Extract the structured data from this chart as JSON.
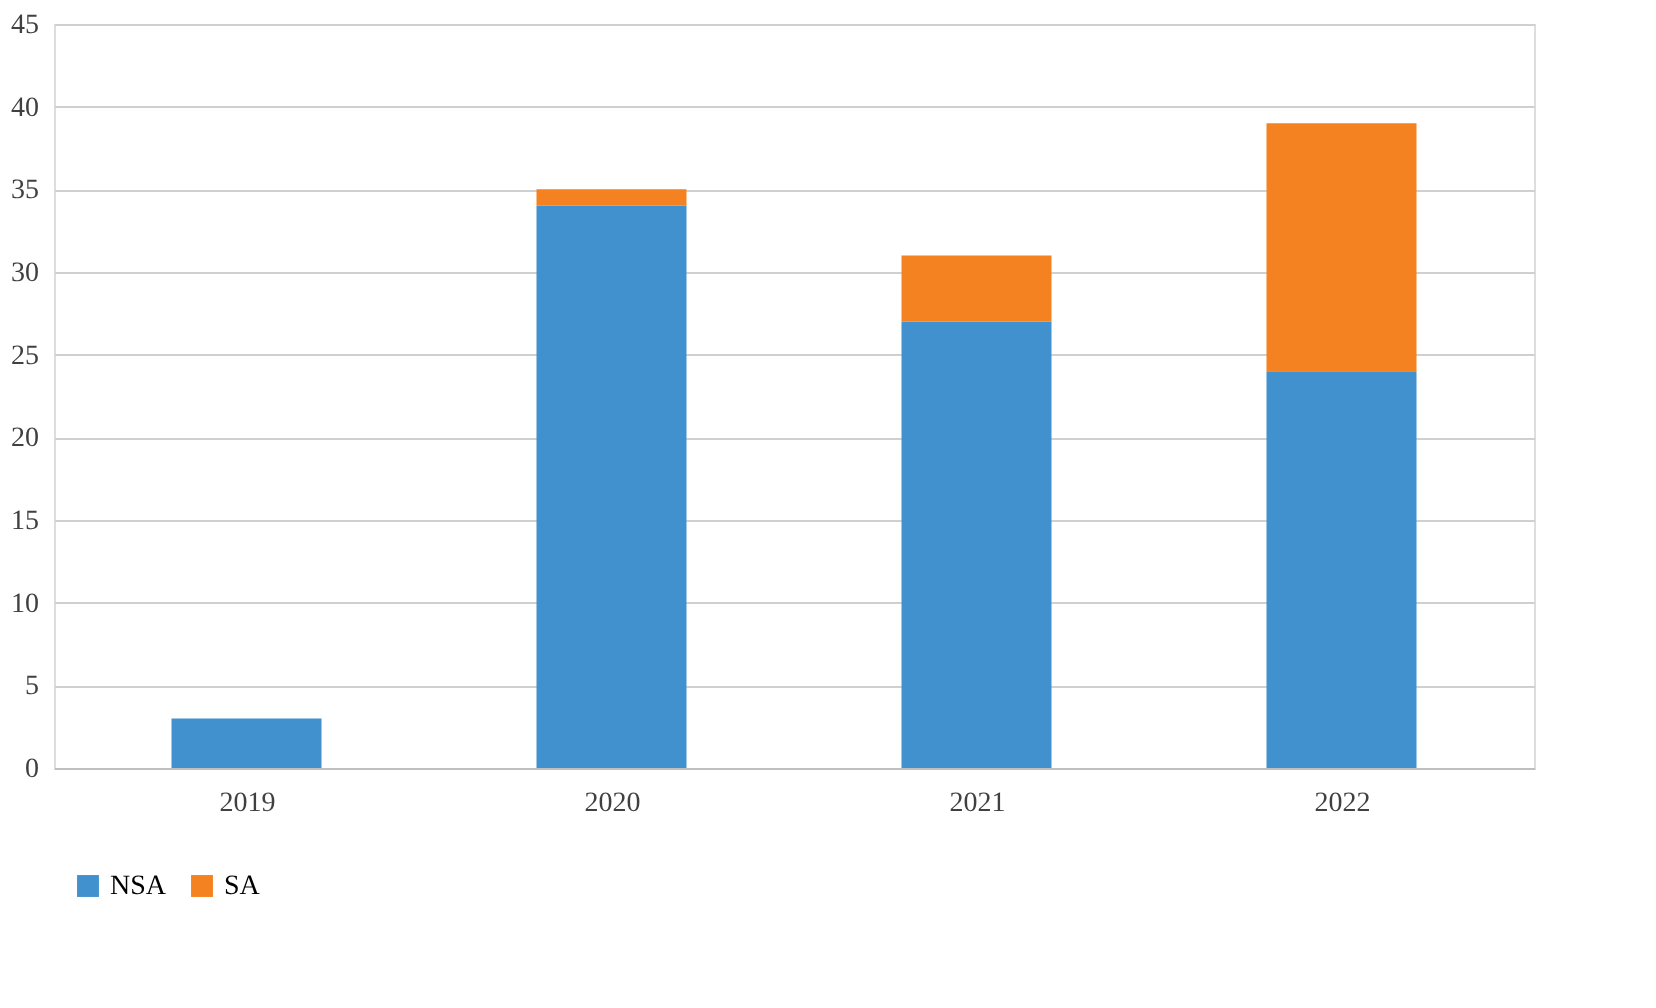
{
  "chart_data": {
    "type": "bar",
    "stacked": true,
    "categories": [
      "2019",
      "2020",
      "2021",
      "2022"
    ],
    "series": [
      {
        "name": "NSA",
        "color": "#4191cf",
        "values": [
          3,
          34,
          27,
          24
        ]
      },
      {
        "name": "SA",
        "color": "#f58220",
        "values": [
          null,
          1,
          4,
          15
        ]
      }
    ],
    "ylim": [
      0,
      45
    ],
    "yticks": [
      0,
      5,
      10,
      15,
      20,
      25,
      30,
      35,
      40,
      45
    ],
    "grid": "y",
    "legend": "bottom"
  }
}
